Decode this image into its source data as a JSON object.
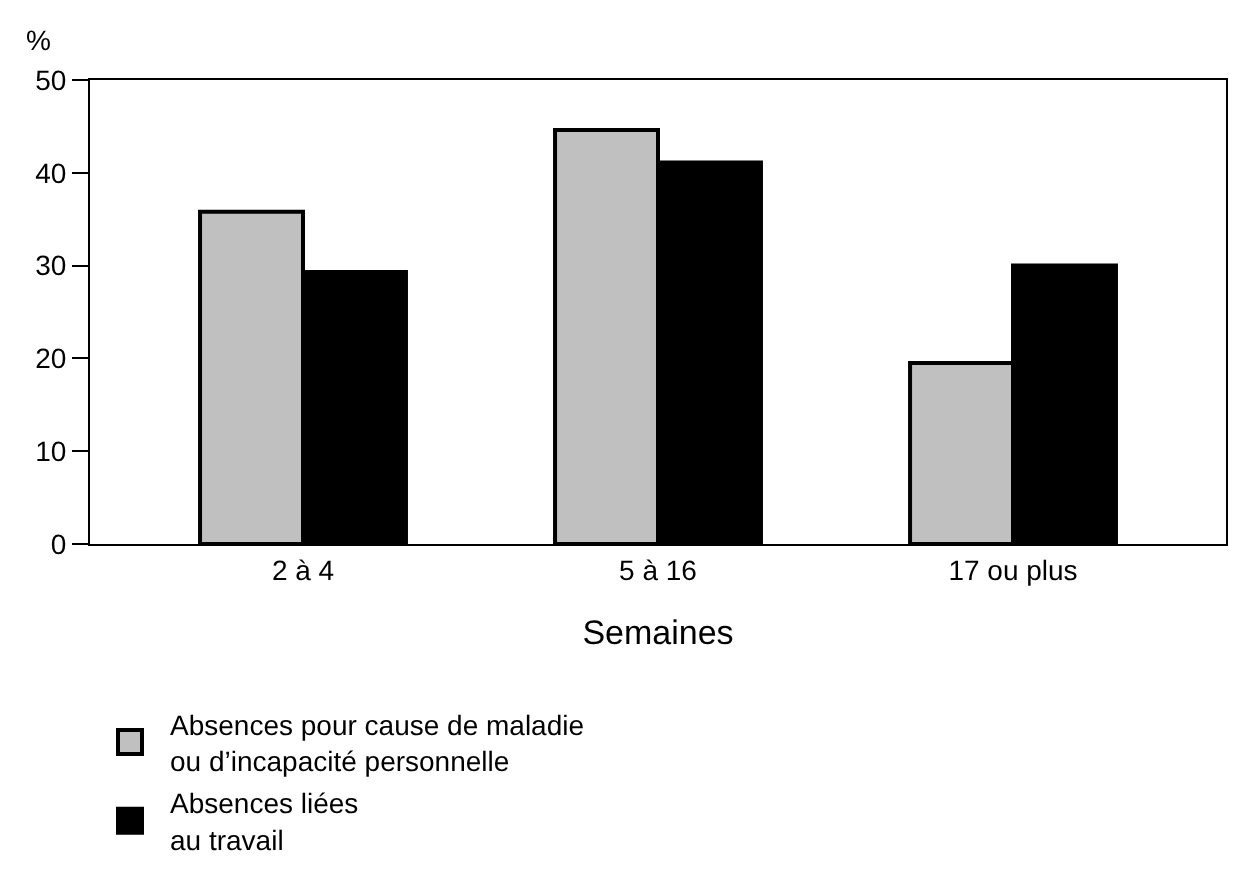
{
  "chart_data": {
    "type": "bar",
    "ylabel": "%",
    "xlabel": "Semaines",
    "categories": [
      "2 à 4",
      "5 à 16",
      "17 ou plus"
    ],
    "series": [
      {
        "name": "Absences pour cause de maladie ou d’incapacité personnelle",
        "color": "#c0c0c0",
        "values": [
          35.8,
          44.6,
          19.5
        ]
      },
      {
        "name": "Absences liées au travail",
        "color": "#000000",
        "values": [
          29.3,
          41.1,
          30.0
        ]
      }
    ],
    "ylim": [
      0,
      50
    ],
    "yticks": [
      0,
      10,
      20,
      30,
      40,
      50
    ],
    "legend": "bottom"
  }
}
